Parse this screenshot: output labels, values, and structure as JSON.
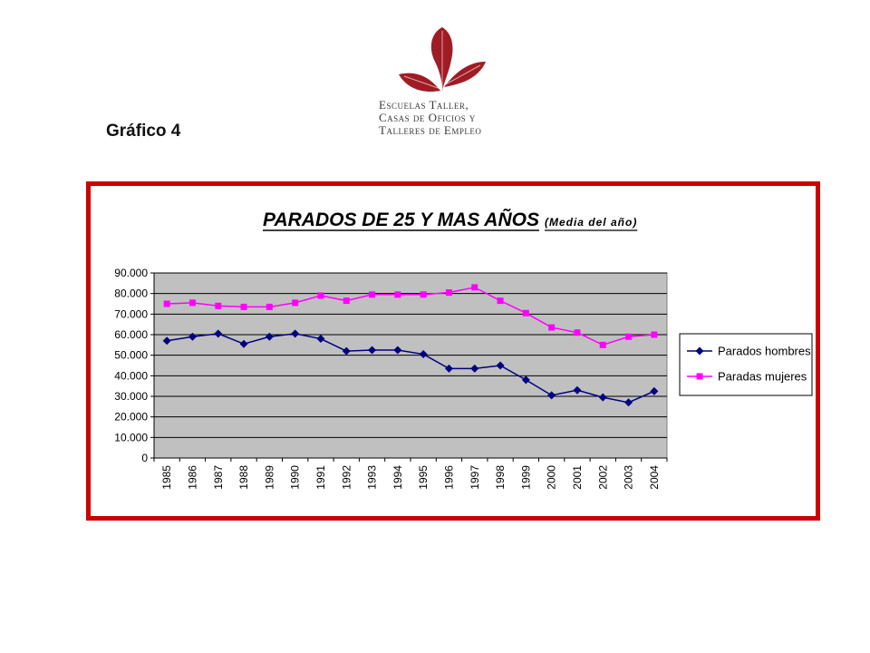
{
  "logo": {
    "line1": "Escuelas Taller,",
    "line2": "Casas de Oficios y",
    "line3": "Talleres de Empleo",
    "color": "#a01c24"
  },
  "figure_label": "Gráfico 4",
  "frame_color": "#cc0000",
  "chart_data": {
    "type": "line",
    "title": "PARADOS DE 25 Y MAS AÑOS",
    "subtitle": "(Media del año)",
    "xlabel": "",
    "ylabel": "",
    "ylim": [
      0,
      90000
    ],
    "yticks": [
      0,
      10000,
      20000,
      30000,
      40000,
      50000,
      60000,
      70000,
      80000,
      90000
    ],
    "ytick_labels": [
      "0",
      "10.000",
      "20.000",
      "30.000",
      "40.000",
      "50.000",
      "60.000",
      "70.000",
      "80.000",
      "90.000"
    ],
    "categories": [
      "1985",
      "1986",
      "1987",
      "1988",
      "1989",
      "1990",
      "1991",
      "1992",
      "1993",
      "1994",
      "1995",
      "1996",
      "1997",
      "1998",
      "1999",
      "2000",
      "2001",
      "2002",
      "2003",
      "2004"
    ],
    "grid": "horizontal",
    "plot_background": "#c0c0c0",
    "legend_position": "right",
    "series": [
      {
        "name": "Parados hombres",
        "color": "#000080",
        "marker": "diamond",
        "values": [
          57000,
          59000,
          60500,
          55500,
          59000,
          60500,
          58000,
          52000,
          52500,
          52500,
          50500,
          43500,
          43500,
          45000,
          38000,
          30500,
          33000,
          29500,
          27000,
          32500
        ]
      },
      {
        "name": "Paradas mujeres",
        "color": "#ff00ff",
        "marker": "square",
        "values": [
          75000,
          75500,
          74000,
          73500,
          73500,
          75500,
          79000,
          76500,
          79500,
          79500,
          79500,
          80500,
          83000,
          76500,
          70500,
          63500,
          61000,
          55000,
          59000,
          60000
        ]
      }
    ]
  }
}
